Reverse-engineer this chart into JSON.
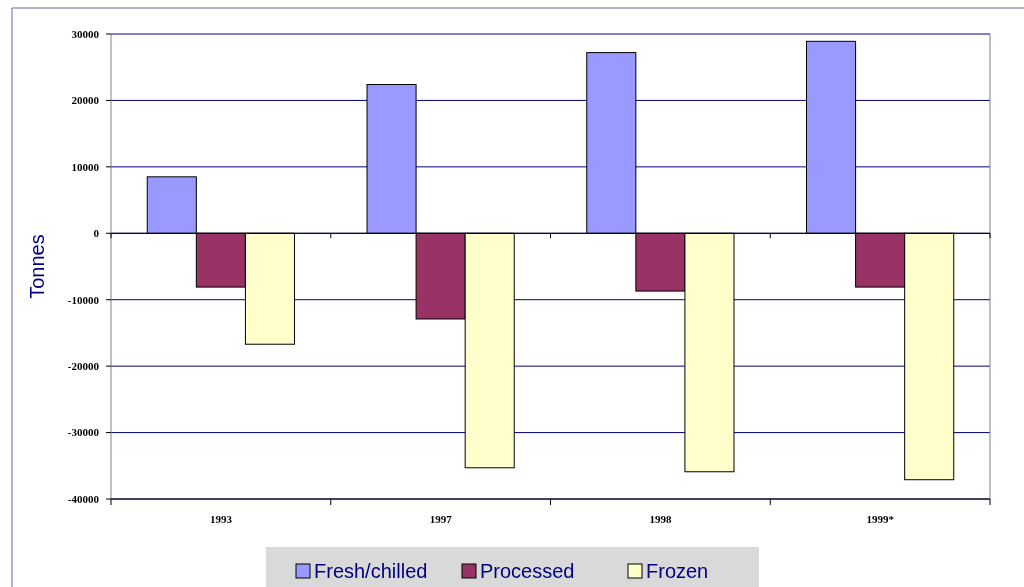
{
  "chart_data": {
    "type": "bar",
    "ylabel": "Tonnes",
    "categories": [
      "1993",
      "1997",
      "1998",
      "1999*"
    ],
    "series": [
      {
        "name": "Fresh/chilled",
        "color": "#9999ff",
        "values": [
          8500,
          22400,
          27200,
          28900
        ]
      },
      {
        "name": "Processed",
        "color": "#993366",
        "values": [
          -8100,
          -12900,
          -8700,
          -8100
        ]
      },
      {
        "name": "Frozen",
        "color": "#ffffcc",
        "values": [
          -16700,
          -35300,
          -35900,
          -37100
        ]
      }
    ],
    "ylim": [
      -40000,
      30000
    ],
    "yticks": [
      -40000,
      -30000,
      -20000,
      -10000,
      0,
      10000,
      20000,
      30000
    ],
    "grid": "y",
    "legend": "bottom"
  }
}
